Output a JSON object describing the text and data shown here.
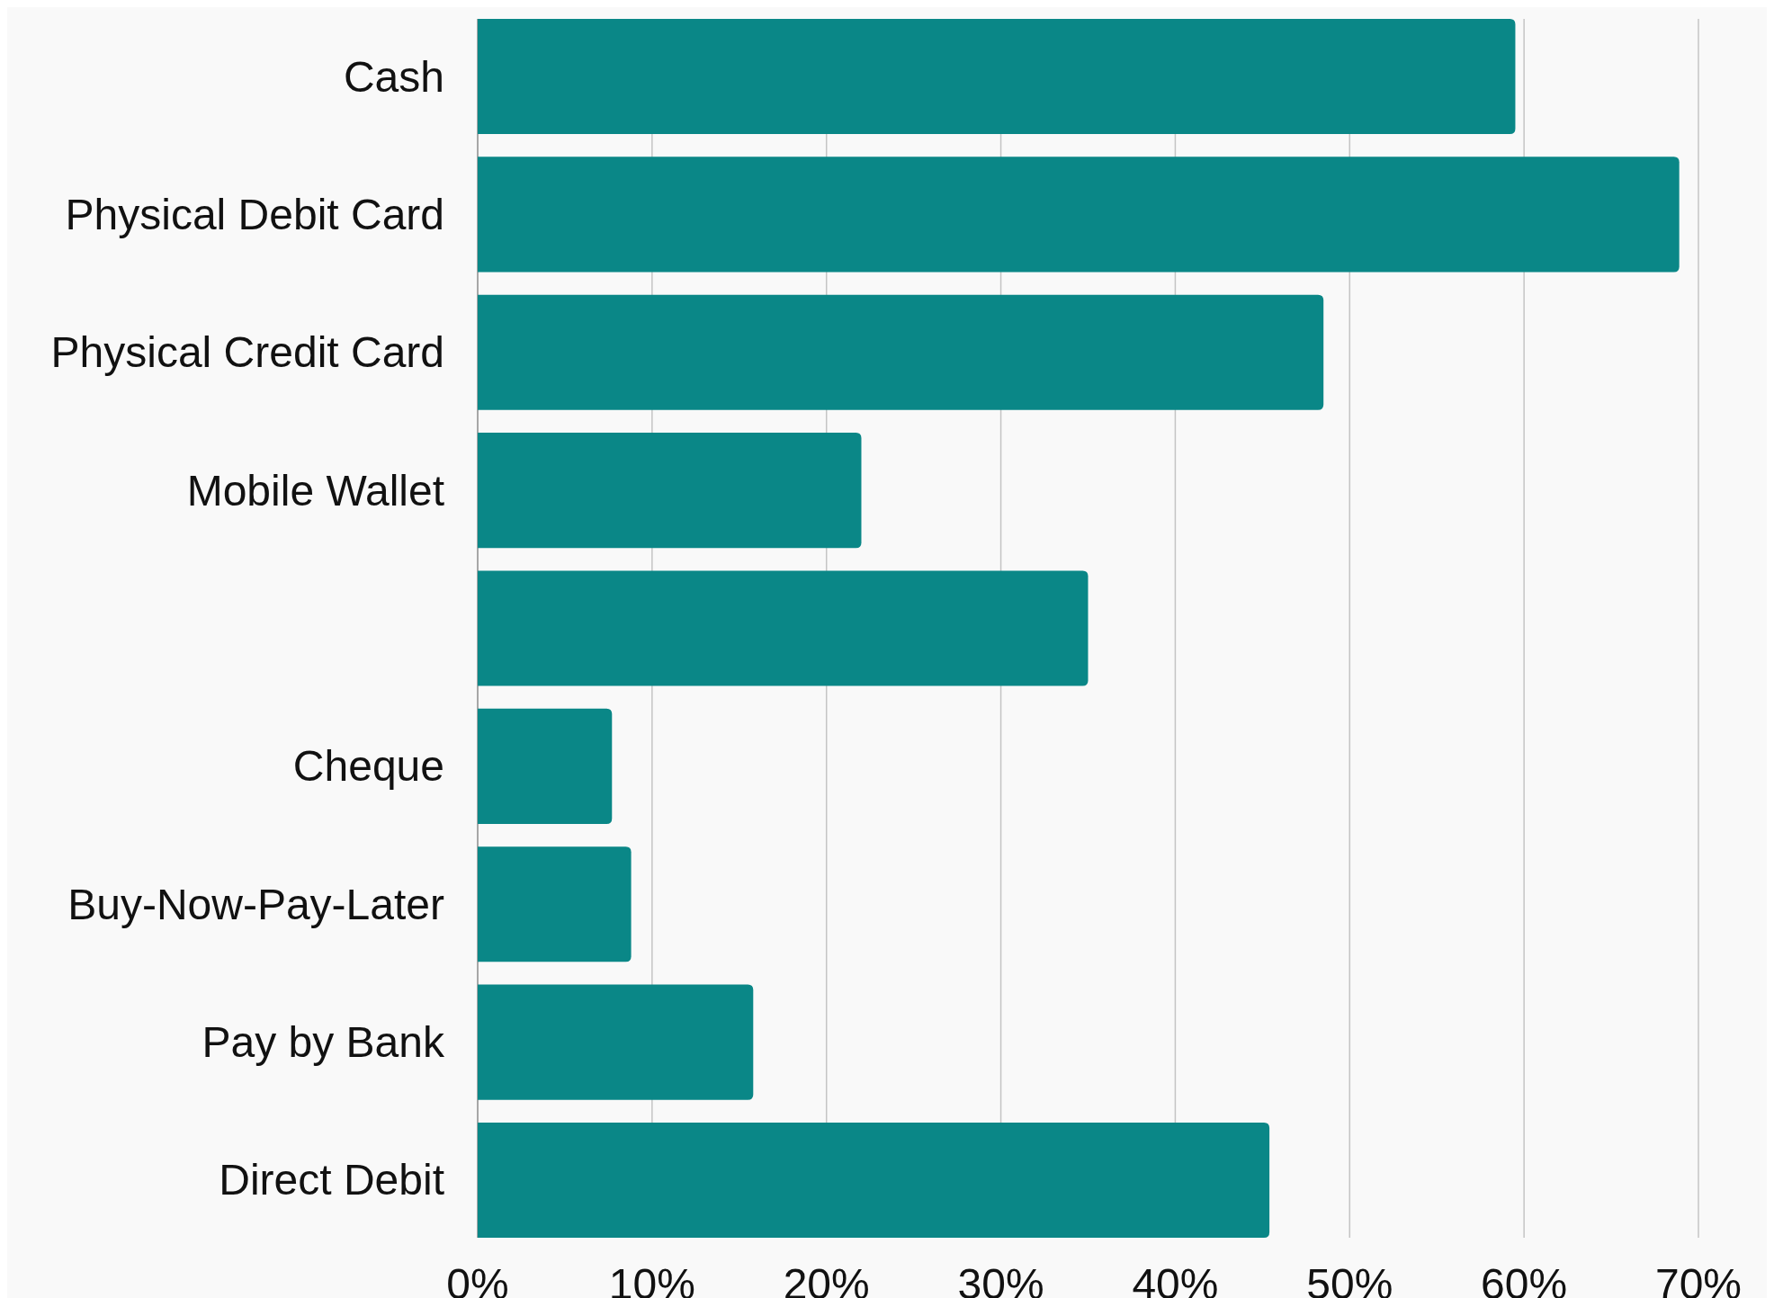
{
  "chart_data": {
    "type": "bar",
    "orientation": "horizontal",
    "categories": [
      "Cash",
      "Physical Debit Card",
      "Physical Credit Card",
      "Mobile Wallet",
      null,
      "Cheque",
      "Buy-Now-Pay-Later",
      "Pay by Bank",
      "Direct Debit"
    ],
    "values": [
      59.5,
      68.9,
      48.5,
      22,
      35,
      7.7,
      8.8,
      15.8,
      45.4
    ],
    "color": "#0a8787",
    "xlim": [
      0,
      70
    ],
    "xticks": [
      {
        "value": 0,
        "label": "0%"
      },
      {
        "value": 10,
        "label": "10%"
      },
      {
        "value": 20,
        "label": "20%"
      },
      {
        "value": 30,
        "label": "30%"
      },
      {
        "value": 40,
        "label": "40%"
      },
      {
        "value": 50,
        "label": "50%"
      },
      {
        "value": 60,
        "label": "60%"
      },
      {
        "value": 70,
        "label": "70%"
      }
    ],
    "grid": "x"
  }
}
